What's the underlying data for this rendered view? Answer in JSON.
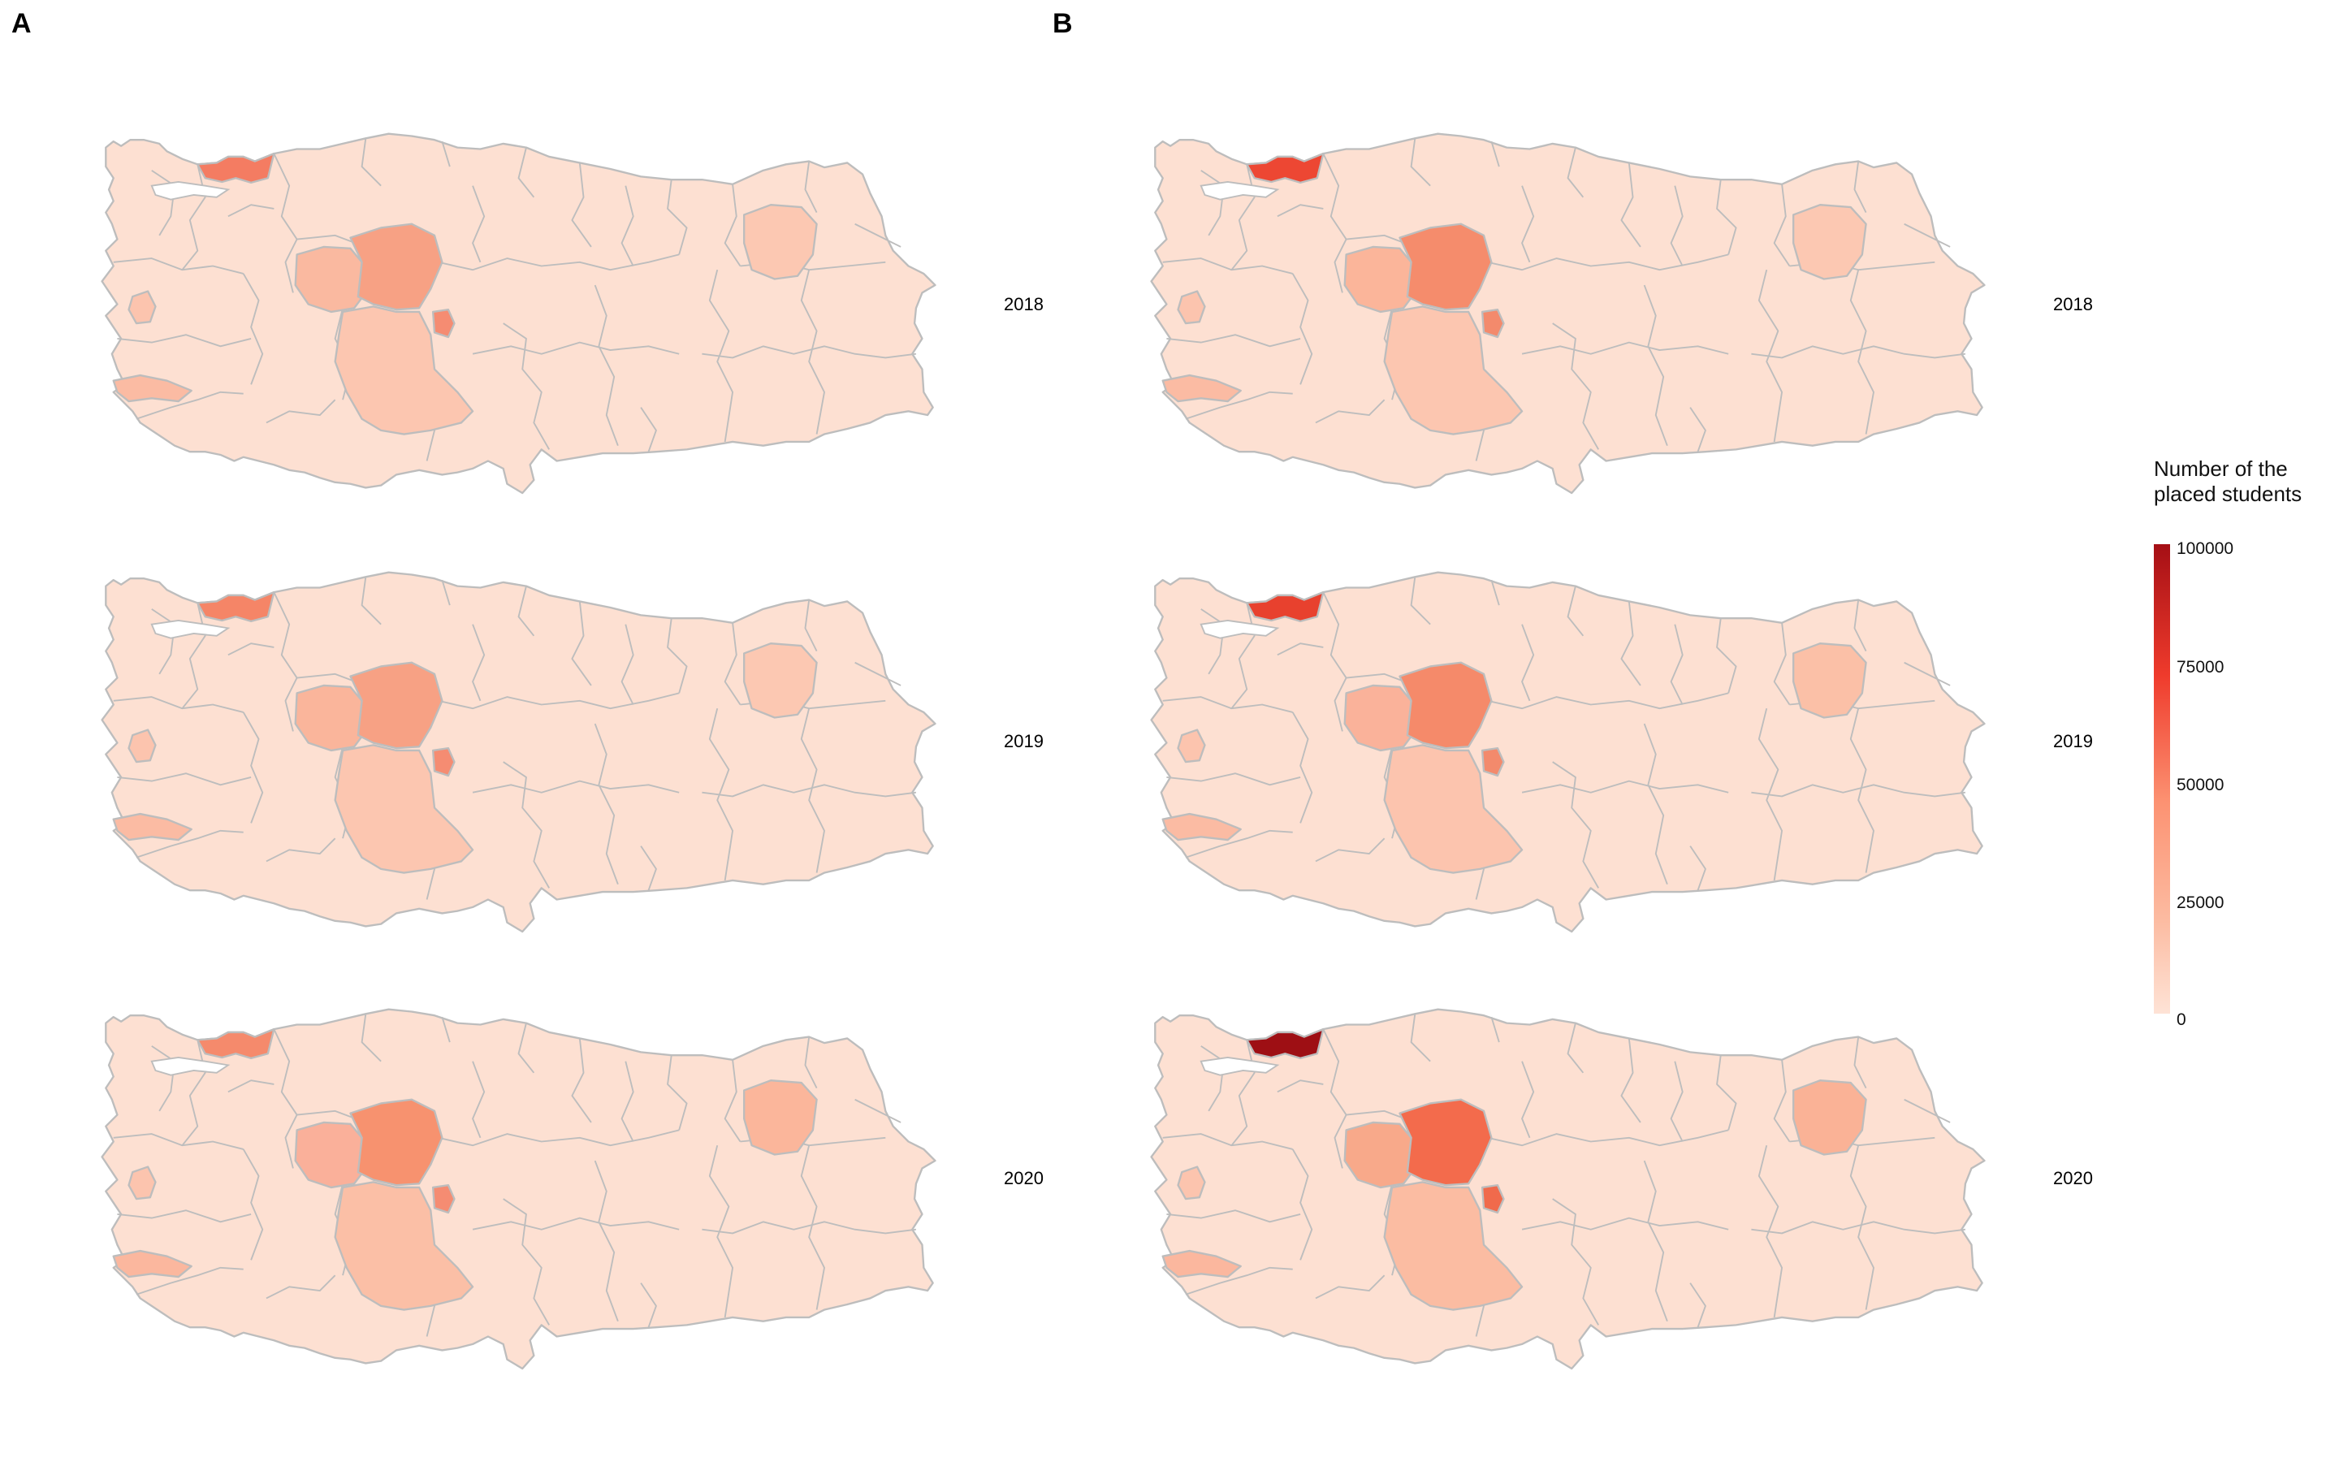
{
  "panels": [
    {
      "letter": "A",
      "years": [
        "2018",
        "2019",
        "2020"
      ]
    },
    {
      "letter": "B",
      "years": [
        "2018",
        "2019",
        "2020"
      ]
    }
  ],
  "legend": {
    "title_line1": "Number of the",
    "title_line2": "placed students",
    "breaks": [
      "100000",
      "75000",
      "50000",
      "25000",
      "0"
    ],
    "range": [
      0,
      100000
    ],
    "colors": [
      "#fee3d6",
      "#fcbba1",
      "#fc9272",
      "#ef3b2c",
      "#a50f15"
    ]
  },
  "map_style": {
    "border_color": "#bdbdbd",
    "base_fill": "#fde0d2"
  },
  "highlight_provinces": {
    "A": [
      {
        "istanbul": "#f47c62",
        "ankara": "#f7a184",
        "eskisehir": "#fab9a0",
        "konya": "#fcc6b0",
        "kirikkale": "#f58c72",
        "izmir": "#fbbba3",
        "manisa": "#fcc4ae",
        "erzurum": "#fcc8b2"
      },
      {
        "istanbul": "#f58567",
        "ankara": "#f7a184",
        "eskisehir": "#fab59b",
        "konya": "#fcc6b0",
        "kirikkale": "#f58c72",
        "izmir": "#fbbba3",
        "manisa": "#fcc4ae",
        "erzurum": "#fcc8b2"
      },
      {
        "istanbul": "#f58a6c",
        "ankara": "#f7926f",
        "eskisehir": "#fab09a",
        "konya": "#fbbfa6",
        "kirikkale": "#f58c72",
        "izmir": "#fbb79e",
        "manisa": "#fcc4ae",
        "erzurum": "#fbb69b"
      }
    ],
    "B": [
      {
        "istanbul": "#ed4733",
        "ankara": "#f58c6c",
        "eskisehir": "#fbb59a",
        "konya": "#fcc6b0",
        "kirikkale": "#f38a6c",
        "izmir": "#fbbba3",
        "manisa": "#fcc4ae",
        "erzurum": "#fcc8b2"
      },
      {
        "istanbul": "#e8412e",
        "ankara": "#f58a6a",
        "eskisehir": "#fab29a",
        "konya": "#fcc4ae",
        "kirikkale": "#f38a6c",
        "izmir": "#fbbba3",
        "manisa": "#fcc4ae",
        "erzurum": "#fbc0a7"
      },
      {
        "istanbul": "#9e0f14",
        "ankara": "#f36b4c",
        "eskisehir": "#f8a98a",
        "konya": "#fbbca2",
        "kirikkale": "#f06a4c",
        "izmir": "#fbb79e",
        "manisa": "#fcc4ae",
        "erzurum": "#fab296"
      }
    ]
  }
}
